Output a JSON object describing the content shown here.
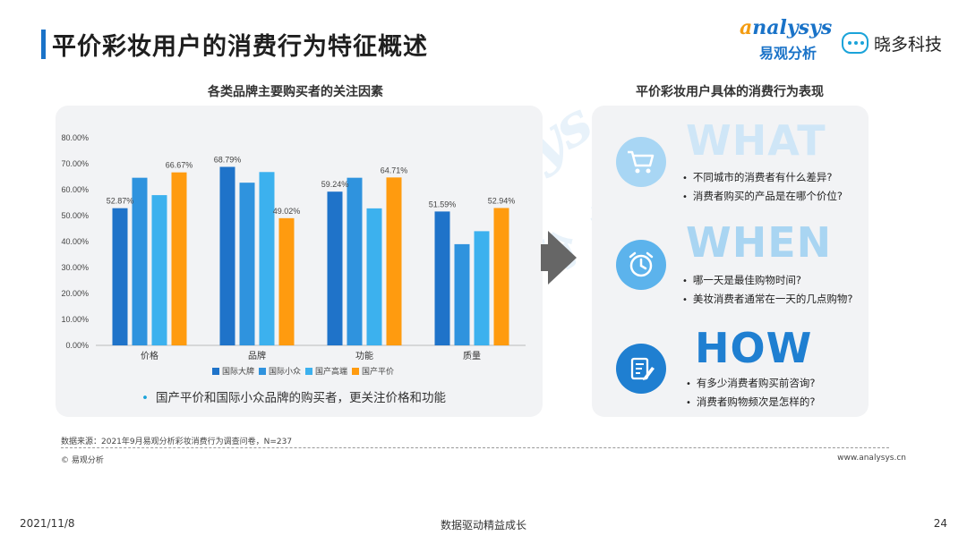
{
  "header": {
    "title": "平价彩妆用户的消费行为特征概述",
    "brand_en": "nalysys",
    "brand_en_a": "a",
    "brand_cn": "易观分析",
    "partner": "晓多科技"
  },
  "left": {
    "subtitle": "各类品牌主要购买者的关注因素",
    "note": "国产平价和国际小众品牌的购买者，更关注价格和功能"
  },
  "right": {
    "subtitle": "平价彩妆用户具体的消费行为表现",
    "blocks": [
      {
        "heading": "WHAT",
        "icon": "shopping-cart-icon",
        "items": [
          "不同城市的消费者有什么差异?",
          "消费者购买的产品是在哪个价位?"
        ]
      },
      {
        "heading": "WHEN",
        "icon": "alarm-clock-icon",
        "items": [
          "哪一天是最佳购物时间?",
          "美妆消费者通常在一天的几点购物?"
        ]
      },
      {
        "heading": "HOW",
        "icon": "clipboard-edit-icon",
        "items": [
          "有多少消费者购买前咨询?",
          "消费者购物频次是怎样的?"
        ]
      }
    ]
  },
  "chart_data": {
    "type": "bar",
    "categories": [
      "价格",
      "品牌",
      "功能",
      "质量"
    ],
    "series": [
      {
        "name": "国际大牌",
        "color": "#1f73c9",
        "values": [
          52.87,
          68.79,
          59.24,
          51.59
        ]
      },
      {
        "name": "国际小众",
        "color": "#2f93de",
        "values": [
          64.6,
          62.7,
          64.6,
          39.0
        ]
      },
      {
        "name": "国产高端",
        "color": "#3cb1ee",
        "values": [
          57.9,
          66.8,
          52.8,
          44.0
        ]
      },
      {
        "name": "国产平价",
        "color": "#ff9b0f",
        "values": [
          66.67,
          49.02,
          64.71,
          52.94
        ]
      }
    ],
    "labels": [
      {
        "series": 0,
        "values": [
          52.87,
          68.79,
          59.24,
          51.59
        ],
        "text": [
          "52.87%",
          "68.79%",
          "59.24%",
          "51.59%"
        ]
      },
      {
        "series": 3,
        "values": [
          66.67,
          49.02,
          64.71,
          52.94
        ],
        "text": [
          "66.67%",
          "49.02%",
          "64.71%",
          "52.94%"
        ]
      }
    ],
    "yticks": [
      "0.00%",
      "10.00%",
      "20.00%",
      "30.00%",
      "40.00%",
      "50.00%",
      "60.00%",
      "70.00%",
      "80.00%"
    ],
    "ylim": [
      0,
      80
    ],
    "grid": false,
    "legend": "bottom"
  },
  "footer": {
    "source": "数据来源：2021年9月易观分析彩妆消费行为调查问卷，N=237",
    "copyright": "© 易观分析",
    "url": "www.analysys.cn",
    "date": "2021/11/8",
    "slogan": "数据驱动精益成长",
    "page": "24"
  }
}
